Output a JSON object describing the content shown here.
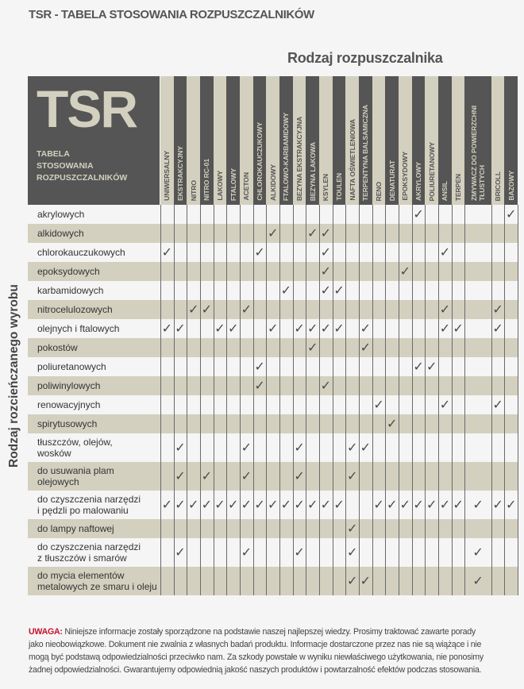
{
  "title": "TSR - TABELA STOSOWANIA ROZPUSZCZALNIKÓW",
  "column_group_title": "Rodzaj rozpuszczalnika",
  "row_group_title": "Rodzaj rozcieńczanego wyrobu",
  "logo": {
    "text": "TSR",
    "subtitle_lines": [
      "TABELA",
      "STOSOWANIA",
      "ROZPUSZCZALNIKÓW"
    ]
  },
  "colors": {
    "dark": "#555555",
    "beige": "#d3d0bf",
    "warning": "#c8102e"
  },
  "check_icon": "checkmark-icon",
  "check_glyph": "✓",
  "columns": [
    [
      "UNIWERSALNY"
    ],
    [
      "EKSTRAKCYJNY"
    ],
    [
      "NITRO"
    ],
    [
      "NITRO RC-01"
    ],
    [
      "LAKOWY"
    ],
    [
      "FTALOWY"
    ],
    [
      "ACETON"
    ],
    [
      "CHLOROKAUCZUKOWY"
    ],
    [
      "ALKIDOWY"
    ],
    [
      "FTALOWO-KARBAMIDOWY"
    ],
    [
      "BEZYNA EKSTRAKCYJNA"
    ],
    [
      "BEZYNA LAKOWA"
    ],
    [
      "KSYLEN"
    ],
    [
      "TOULEN"
    ],
    [
      "NAFTA OŚWIETLENIOWA"
    ],
    [
      "TERPENTYNA BALSAMICZNA"
    ],
    [
      "RENO"
    ],
    [
      "DENATURAT"
    ],
    [
      "EPOKSYDOWY"
    ],
    [
      "AKRYLOWY"
    ],
    [
      "POLIURETANOWY"
    ],
    [
      "ANSIL"
    ],
    [
      "TERPEN"
    ],
    [
      "ZMYWACZ DO POWIERZCHNI",
      "TŁUSTYCH"
    ],
    [
      "BRICOLL"
    ],
    [
      "BAZOWY"
    ]
  ],
  "rows": [
    {
      "label": [
        "akrylowych"
      ],
      "checks": [
        19,
        25
      ]
    },
    {
      "label": [
        "alkidowych"
      ],
      "checks": [
        8,
        11,
        12
      ]
    },
    {
      "label": [
        "chlorokauczukowych"
      ],
      "checks": [
        0,
        7,
        12,
        21
      ]
    },
    {
      "label": [
        "epoksydowych"
      ],
      "checks": [
        12,
        18
      ]
    },
    {
      "label": [
        "karbamidowych"
      ],
      "checks": [
        9,
        12,
        13
      ]
    },
    {
      "label": [
        "nitrocelulozowych"
      ],
      "checks": [
        2,
        3,
        6,
        21,
        24
      ]
    },
    {
      "label": [
        "olejnych i ftalowych"
      ],
      "checks": [
        0,
        1,
        4,
        5,
        8,
        10,
        11,
        12,
        13,
        15,
        21,
        22,
        24
      ]
    },
    {
      "label": [
        "pokostów"
      ],
      "checks": [
        11,
        15
      ]
    },
    {
      "label": [
        "poliuretanowych"
      ],
      "checks": [
        7,
        19,
        20
      ]
    },
    {
      "label": [
        "poliwinylowych"
      ],
      "checks": [
        7,
        12
      ]
    },
    {
      "label": [
        "renowacyjnych"
      ],
      "checks": [
        16,
        21,
        24
      ]
    },
    {
      "label": [
        "spirytusowych"
      ],
      "checks": [
        17
      ]
    },
    {
      "label": [
        "tłuszczów, olejów,",
        "wosków"
      ],
      "checks": [
        1,
        6,
        10,
        14,
        15
      ]
    },
    {
      "label": [
        "do usuwania plam",
        "olejowych"
      ],
      "checks": [
        1,
        3,
        6,
        10,
        14
      ]
    },
    {
      "label": [
        "do czyszczenia narzędzi",
        "i pędzli po malowaniu"
      ],
      "checks": [
        0,
        1,
        2,
        3,
        4,
        5,
        6,
        7,
        8,
        9,
        10,
        11,
        12,
        13,
        16,
        17,
        18,
        19,
        20,
        21,
        22,
        23,
        24,
        25
      ]
    },
    {
      "label": [
        "do lampy naftowej"
      ],
      "checks": [
        14
      ]
    },
    {
      "label": [
        "do czyszczenia narzędzi",
        "z tłuszczów i smarów"
      ],
      "checks": [
        1,
        6,
        10,
        14,
        23
      ]
    },
    {
      "label": [
        "do mycia elementów",
        "metalowych ze smaru i oleju"
      ],
      "checks": [
        14,
        15,
        23
      ]
    }
  ],
  "note": {
    "warning_label": "UWAGA:",
    "lines": [
      " Niniejsze informacje zostały sporządzone na podstawie naszej najlepszej wiedzy. Prosimy traktować zawarte porady",
      "jako nieobowiązkowe. Dokument nie zwalnia z własnych badań produktu. Informacje dostarczone przez nas nie są wiążące i nie",
      "mogą być podstawą odpowiedzialności przeciwko nam. Za szkody powstałe w wyniku niewłaściwego użytkowania, nie ponosimy",
      "żadnej odpowiedzialności. Gwarantujemy odpowiednią jakość naszych produktów i powtarzalność efektów podczas stosowania."
    ]
  }
}
